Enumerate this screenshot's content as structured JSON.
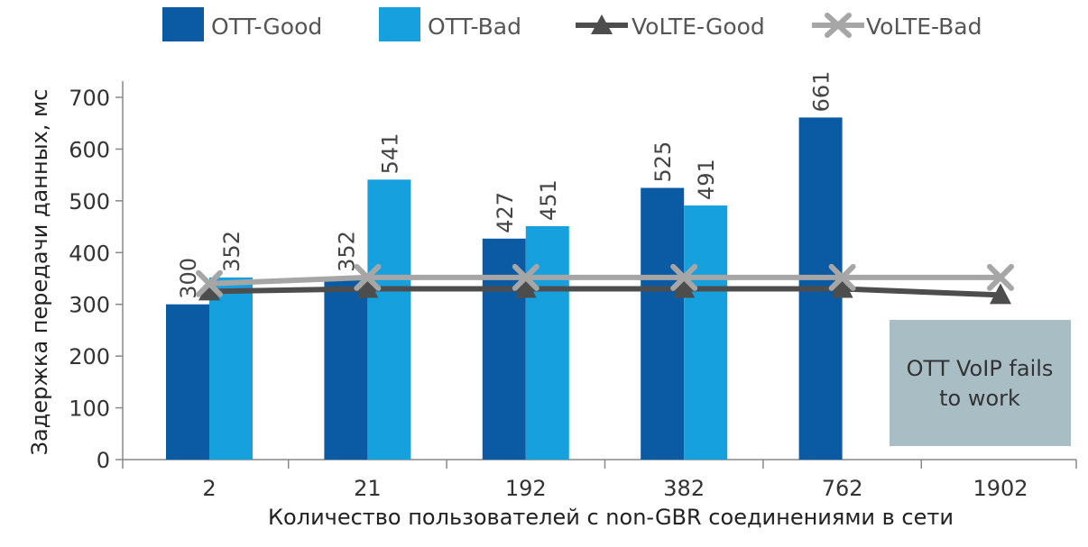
{
  "chart_data": {
    "type": "bar",
    "title": "",
    "xlabel": "Количество пользователей с non-GBR соединениями в сети",
    "ylabel": "Задержка передачи данных, мс",
    "ylim": [
      0,
      700
    ],
    "yticks": [
      0,
      100,
      200,
      300,
      400,
      500,
      600,
      700
    ],
    "categories": [
      "2",
      "21",
      "192",
      "382",
      "762",
      "1902"
    ],
    "series": [
      {
        "name": "OTT-Good",
        "kind": "bar",
        "color": "#0a5ba4",
        "values": [
          300,
          352,
          427,
          525,
          661,
          null
        ],
        "labels": [
          "300",
          "352",
          "427",
          "525",
          "661",
          ""
        ]
      },
      {
        "name": "OTT-Bad",
        "kind": "bar",
        "color": "#16a1de",
        "values": [
          352,
          541,
          451,
          491,
          null,
          null
        ],
        "labels": [
          "352",
          "541",
          "451",
          "491",
          "",
          ""
        ]
      },
      {
        "name": "VoLTE-Good",
        "kind": "line",
        "marker": "triangle",
        "color": "#4d4d4d",
        "values": [
          325,
          330,
          330,
          330,
          330,
          318
        ]
      },
      {
        "name": "VoLTE-Bad",
        "kind": "line",
        "marker": "x",
        "color": "#a6a6a6",
        "values": [
          340,
          352,
          352,
          352,
          352,
          352
        ]
      }
    ],
    "legend_position": "top",
    "annotation": {
      "text_line1": "OTT VoIP fails",
      "text_line2": "to work",
      "background": "#a9bec4"
    }
  }
}
